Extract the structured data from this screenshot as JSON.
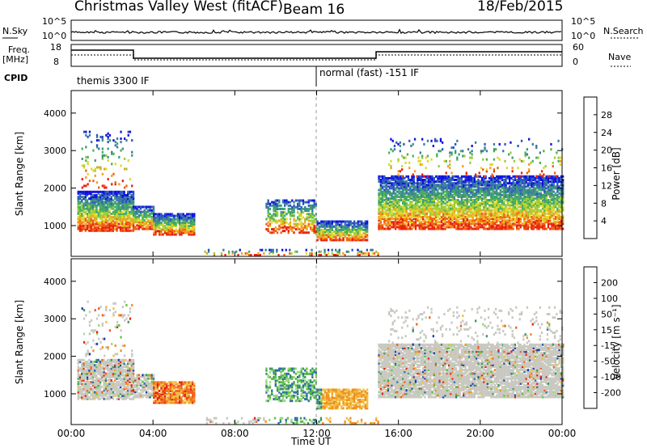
{
  "header": {
    "station": "Christmas Valley West (fitACF)",
    "beam": "Beam 16",
    "date": "18/Feb/2015"
  },
  "params": {
    "nsky_label": "N.Sky",
    "nsky_ticks": [
      "10^5",
      "10^0"
    ],
    "nsearch_label": "N.Search",
    "nsearch_ticks": [
      "10^5",
      "10^0"
    ],
    "freq_label": "Freq.",
    "freq_unit": "[MHz]",
    "freq_ticks": [
      "18",
      "8"
    ],
    "nave_label": "Nave",
    "nave_ticks": [
      "60",
      "0"
    ],
    "cpid_label": "CPID",
    "cpid_segments": [
      "themis 3300 IF",
      "normal (fast) -151 IF"
    ]
  },
  "chart_data": [
    {
      "type": "heatmap",
      "name": "Power",
      "ylabel": "Slant Range [km]",
      "yticks": [
        1000,
        2000,
        3000,
        4000
      ],
      "ylim": [
        180,
        4600
      ],
      "colorbar_label": "Power [dB]",
      "colorbar_ticks": [
        4,
        8,
        12,
        16,
        20,
        24,
        28
      ],
      "colorbar_range": [
        0,
        32
      ],
      "colors": [
        "#1010e0",
        "#2a54c0",
        "#3a7aa0",
        "#3c9a78",
        "#48b058",
        "#9ccc38",
        "#e0d828",
        "#f0a020",
        "#f06010",
        "#e82010"
      ]
    },
    {
      "type": "heatmap",
      "name": "Velocity",
      "ylabel": "Slant Range [km]",
      "yticks": [
        1000,
        2000,
        3000,
        4000
      ],
      "ylim": [
        180,
        4600
      ],
      "colorbar_label": "Velocity [m s⁻¹]",
      "colorbar_ticks": [
        "200",
        "100",
        "50",
        "15",
        "-15",
        "-50",
        "-100",
        "-200"
      ],
      "colors": [
        "#1c3cb0",
        "#2a6aa8",
        "#3a9a5a",
        "#60c040",
        "#9ad880",
        "#c8c8c0",
        "#f0c040",
        "#f09020",
        "#f06020",
        "#e82010"
      ]
    }
  ],
  "xaxis": {
    "label": "Time UT",
    "ticks": [
      "00:00",
      "04:00",
      "08:00",
      "12:00",
      "16:00",
      "20:00",
      "00:00"
    ],
    "range_hours": [
      0,
      24
    ],
    "cpid_change_hour": 12
  }
}
